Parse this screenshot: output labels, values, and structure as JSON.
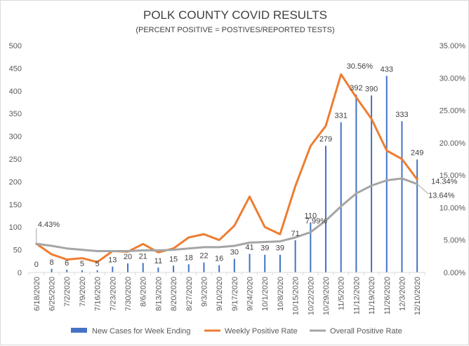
{
  "chart_data": {
    "type": "bar+line",
    "title": "POLK COUNTY COVID RESULTS",
    "subtitle": "(PERCENT POSITIVE = POSTIVES/REPORTED TESTS)",
    "categories": [
      "6/18/2020",
      "6/25/2020",
      "7/2/2020",
      "7/9/2020",
      "7/16/2020",
      "7/23/2020",
      "7/30/2020",
      "8/6/2020",
      "8/13/2020",
      "8/20/2020",
      "8/27/2020",
      "9/3/2020",
      "9/10/2020",
      "9/17/2020",
      "9/24/2020",
      "10/1/2020",
      "10/8/2020",
      "10/15/2020",
      "10/22/2020",
      "10/29/2020",
      "11/5/2020",
      "11/12/2020",
      "11/19/2020",
      "11/26/2020",
      "12/3/2020",
      "12/10/2020"
    ],
    "series": [
      {
        "name": "New Cases for Week Ending",
        "type": "bar",
        "axis": "left",
        "color": "#4472c4",
        "values": [
          0,
          8,
          6,
          5,
          5,
          13,
          20,
          21,
          11,
          15,
          18,
          22,
          16,
          30,
          41,
          39,
          39,
          71,
          110,
          279,
          331,
          392,
          390,
          433,
          333,
          249
        ],
        "labels": [
          "0",
          "8",
          "6",
          "5",
          "5",
          "13",
          "20",
          "21",
          "11",
          "15",
          "18",
          "22",
          "16",
          "30",
          "41",
          "39",
          "39",
          "71",
          "110",
          "279",
          "331",
          "392",
          "390",
          "433",
          "333",
          "249"
        ]
      },
      {
        "name": "Weekly Positive Rate",
        "type": "line",
        "axis": "right",
        "color": "#ed7d31",
        "values": [
          4.43,
          2.8,
          2.0,
          2.2,
          1.6,
          3.3,
          3.2,
          4.4,
          3.1,
          3.7,
          5.4,
          5.9,
          5.0,
          7.2,
          11.7,
          7.0,
          5.9,
          13.3,
          19.5,
          22.6,
          30.56,
          27.0,
          23.7,
          18.8,
          17.5,
          14.34
        ],
        "labels": {
          "0": "4.43%",
          "20": "30.56%",
          "25": "14.34%"
        }
      },
      {
        "name": "Overall Positive Rate",
        "type": "line",
        "axis": "right",
        "color": "#a5a5a5",
        "values": [
          4.43,
          4.1,
          3.7,
          3.5,
          3.3,
          3.3,
          3.3,
          3.4,
          3.4,
          3.5,
          3.7,
          3.9,
          3.9,
          4.1,
          4.6,
          4.7,
          4.8,
          5.4,
          6.2,
          7.99,
          10.2,
          12.2,
          13.4,
          14.2,
          14.5,
          13.64
        ],
        "labels": {
          "19": "7.99%",
          "25": "13.64%"
        }
      }
    ],
    "left_axis": {
      "min": 0,
      "max": 500,
      "ticks": [
        "0",
        "50",
        "100",
        "150",
        "200",
        "250",
        "300",
        "350",
        "400",
        "450",
        "500"
      ]
    },
    "right_axis": {
      "min": 0,
      "max": 35,
      "ticks": [
        "0.00%",
        "5.00%",
        "10.00%",
        "15.00%",
        "20.00%",
        "25.00%",
        "30.00%",
        "35.00%"
      ]
    },
    "grid": false,
    "legend": "bottom"
  }
}
